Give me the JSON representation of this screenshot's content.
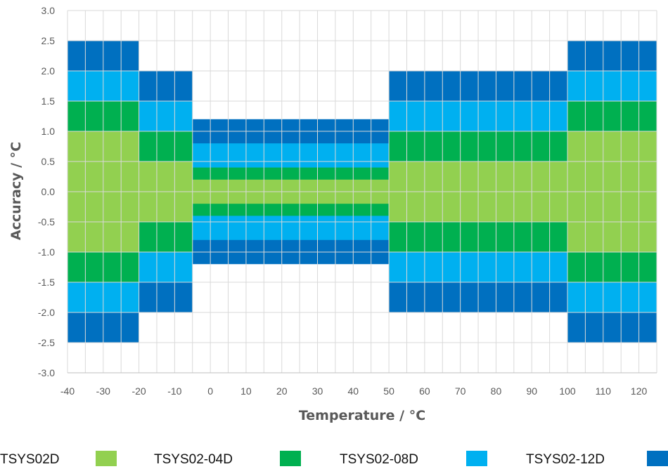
{
  "chart_data": {
    "type": "area",
    "xlabel": "Temperature / °C",
    "ylabel": "Accuracy / °C",
    "xlim": [
      -40,
      125
    ],
    "ylim": [
      -3.0,
      3.0
    ],
    "x_ticks": [
      "-40",
      "-30",
      "-20",
      "-10",
      "0",
      "10",
      "20",
      "30",
      "40",
      "50",
      "60",
      "70",
      "80",
      "90",
      "100",
      "110",
      "120"
    ],
    "y_ticks": [
      "3.0",
      "2.5",
      "2.0",
      "1.5",
      "1.0",
      "0.5",
      "0.0",
      "-0.5",
      "-1.0",
      "-1.5",
      "-2.0",
      "-2.5",
      "-3.0"
    ],
    "grid": true,
    "legend_position": "bottom",
    "series": [
      {
        "name": "TSYS02D",
        "color": "#92d050",
        "segments": [
          {
            "x": [
              -40,
              -20
            ],
            "tolerance": 1.0
          },
          {
            "x": [
              -20,
              -5
            ],
            "tolerance": 0.5
          },
          {
            "x": [
              -5,
              50
            ],
            "tolerance": 0.2
          },
          {
            "x": [
              50,
              100
            ],
            "tolerance": 0.5
          },
          {
            "x": [
              100,
              125
            ],
            "tolerance": 1.0
          }
        ]
      },
      {
        "name": "TSYS02-04D",
        "color": "#00b050",
        "segments": [
          {
            "x": [
              -40,
              -20
            ],
            "tolerance": 1.5
          },
          {
            "x": [
              -20,
              -5
            ],
            "tolerance": 1.0
          },
          {
            "x": [
              -5,
              50
            ],
            "tolerance": 0.4
          },
          {
            "x": [
              50,
              100
            ],
            "tolerance": 1.0
          },
          {
            "x": [
              100,
              125
            ],
            "tolerance": 1.5
          }
        ]
      },
      {
        "name": "TSYS02-08D",
        "color": "#00b0f0",
        "segments": [
          {
            "x": [
              -40,
              -20
            ],
            "tolerance": 2.0
          },
          {
            "x": [
              -20,
              -5
            ],
            "tolerance": 1.5
          },
          {
            "x": [
              -5,
              50
            ],
            "tolerance": 0.8
          },
          {
            "x": [
              50,
              100
            ],
            "tolerance": 1.5
          },
          {
            "x": [
              100,
              125
            ],
            "tolerance": 2.0
          }
        ]
      },
      {
        "name": "TSYS02-12D",
        "color": "#0070c0",
        "segments": [
          {
            "x": [
              -40,
              -20
            ],
            "tolerance": 2.5
          },
          {
            "x": [
              -20,
              -5
            ],
            "tolerance": 2.0
          },
          {
            "x": [
              -5,
              50
            ],
            "tolerance": 1.2
          },
          {
            "x": [
              50,
              100
            ],
            "tolerance": 2.0
          },
          {
            "x": [
              100,
              125
            ],
            "tolerance": 2.5
          }
        ]
      }
    ]
  }
}
